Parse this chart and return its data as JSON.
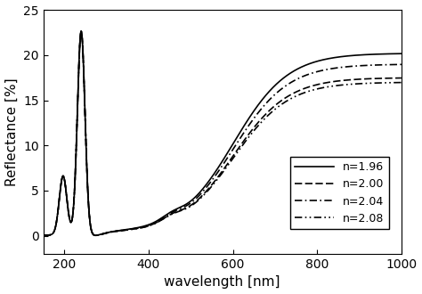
{
  "title": "",
  "xlabel": "wavelength [nm]",
  "ylabel": "Reflectance [%]",
  "xlim": [
    150,
    1000
  ],
  "ylim": [
    -2,
    25
  ],
  "xticks": [
    200,
    400,
    600,
    800,
    1000
  ],
  "yticks": [
    0,
    5,
    10,
    15,
    20,
    25
  ],
  "legend_labels": [
    "n=1.96",
    "n=2.00",
    "n=2.04",
    "n=2.08"
  ],
  "plateau_values": [
    20.2,
    17.5,
    19.0,
    17.0
  ],
  "background_color": "#ffffff",
  "font_size": 11,
  "tick_fontsize": 10,
  "legend_fontsize": 9
}
